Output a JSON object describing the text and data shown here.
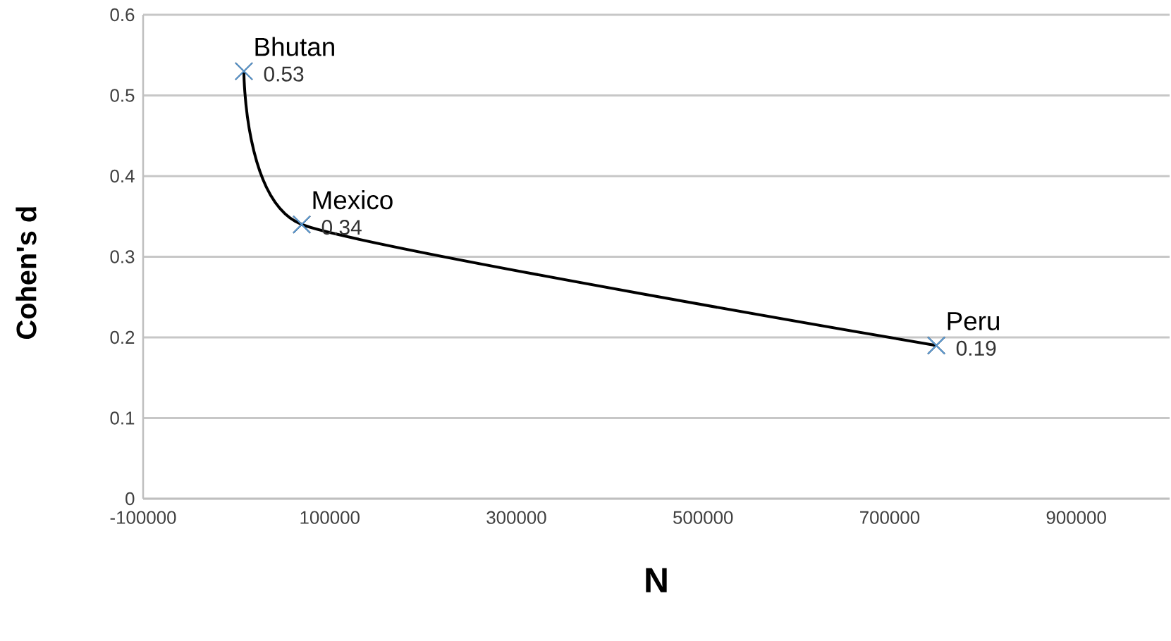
{
  "chart_data": {
    "type": "line",
    "xlabel": "N",
    "ylabel": "Cohen's d",
    "xlim": [
      -100000,
      1000000
    ],
    "xticks": [
      -100000,
      100000,
      300000,
      500000,
      700000,
      900000
    ],
    "ylim": [
      0,
      0.6
    ],
    "yticks": [
      0,
      0.1,
      0.2,
      0.3,
      0.4,
      0.5,
      0.6
    ],
    "grid": "y",
    "series": [
      {
        "color": "#000000",
        "x": [
          8000,
          70000,
          750000
        ],
        "values": [
          0.53,
          0.34,
          0.19
        ],
        "line_style": "solid",
        "marker": "cross"
      },
      {
        "type": "scatter",
        "color": "#5b9bd5",
        "x": [
          8000,
          70000,
          750000
        ],
        "values": [
          0.53,
          0.34,
          0.19
        ],
        "marker": "cross",
        "value_labels": [
          "0.53",
          "0.34",
          "0.19"
        ]
      }
    ],
    "annotations": [
      {
        "text": "Bhutan",
        "x": 8000,
        "y": 0.53
      },
      {
        "text": "Mexico",
        "x": 70000,
        "y": 0.34
      },
      {
        "text": "Peru",
        "x": 750000,
        "y": 0.19
      }
    ]
  }
}
